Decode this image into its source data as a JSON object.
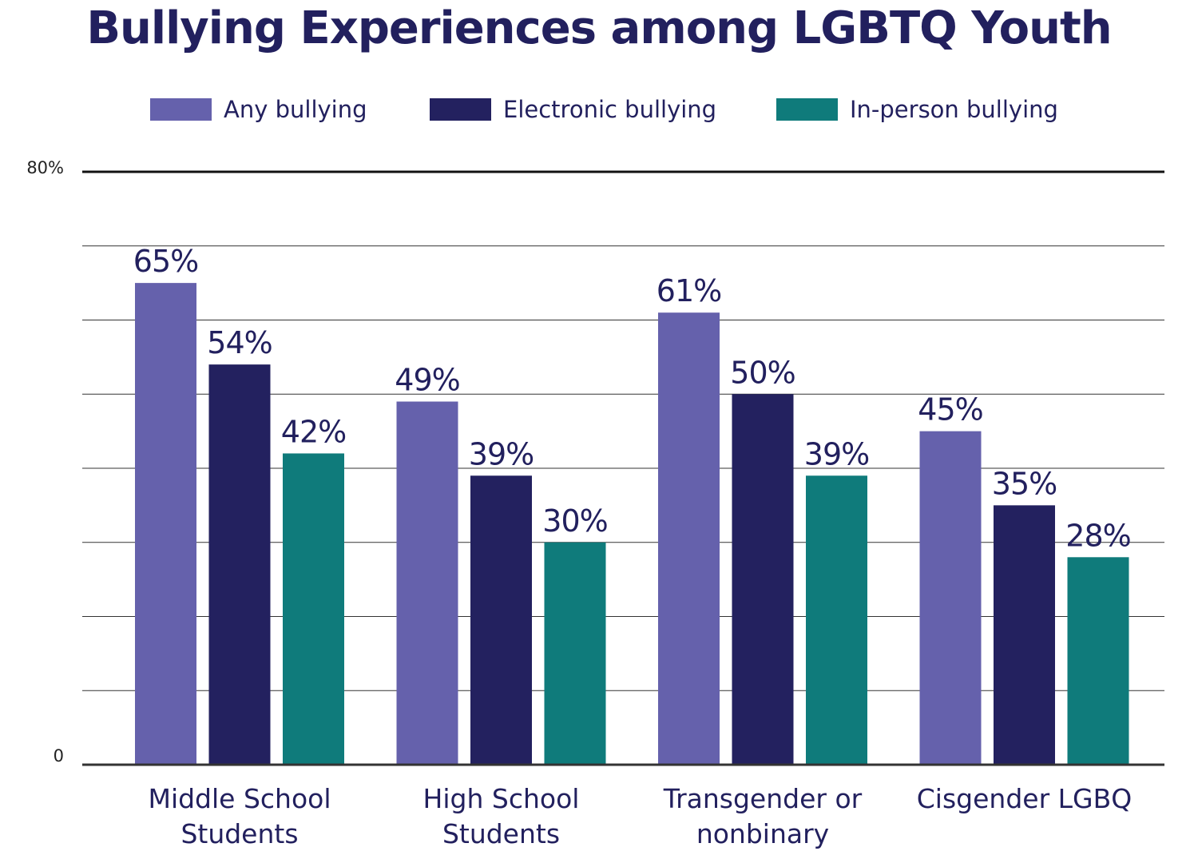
{
  "colors": {
    "title": "#22205e",
    "text": "#22205e",
    "axis_label": "#222222",
    "gridline": "#333333",
    "any": "#6561ac",
    "electronic": "#23215f",
    "inperson": "#0f7b7b"
  },
  "chart_data": {
    "type": "bar",
    "title": "Bullying Experiences among LGBTQ Youth",
    "xlabel": "",
    "ylabel": "",
    "ylim": [
      0,
      80
    ],
    "y_tick_labels": [
      "0",
      "80%"
    ],
    "grid": true,
    "legend_position": "top",
    "categories": [
      [
        "Middle School",
        "Students"
      ],
      [
        "High School",
        "Students"
      ],
      [
        "Transgender or",
        "nonbinary"
      ],
      [
        "Cisgender LGBQ"
      ]
    ],
    "series": [
      {
        "name": "Any bullying",
        "color": "#6561ac",
        "values": [
          65,
          49,
          61,
          45
        ],
        "labels": [
          "65%",
          "49%",
          "61%",
          "45%"
        ]
      },
      {
        "name": "Electronic bullying",
        "color": "#23215f",
        "values": [
          54,
          39,
          50,
          35
        ],
        "labels": [
          "54%",
          "39%",
          "50%",
          "35%"
        ]
      },
      {
        "name": "In-person bullying",
        "color": "#0f7b7b",
        "values": [
          42,
          30,
          39,
          28
        ],
        "labels": [
          "42%",
          "30%",
          "39%",
          "28%"
        ]
      }
    ]
  }
}
